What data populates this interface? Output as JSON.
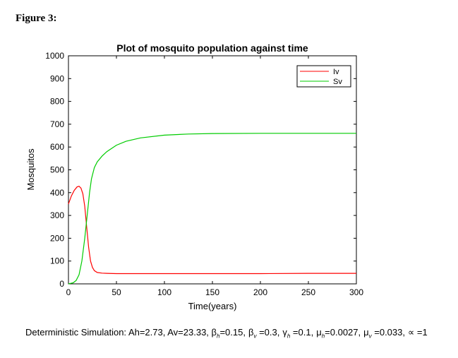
{
  "figure_label": "Figure 3:",
  "chart_data": {
    "type": "line",
    "title": "Plot of mosquito population against time",
    "xlabel": "Time(years)",
    "ylabel": "Mosquitos",
    "xlim": [
      0,
      300
    ],
    "ylim": [
      0,
      1000
    ],
    "xticks": [
      0,
      50,
      100,
      150,
      200,
      250,
      300
    ],
    "yticks": [
      0,
      100,
      200,
      300,
      400,
      500,
      600,
      700,
      800,
      900,
      1000
    ],
    "xtick_labels": [
      "0",
      "50",
      "100",
      "150",
      "200",
      "250",
      "300"
    ],
    "ytick_labels": [
      "0",
      "100",
      "200",
      "300",
      "400",
      "500",
      "600",
      "700",
      "800",
      "900",
      "1000"
    ],
    "grid": false,
    "legend_position": "top-right",
    "series": [
      {
        "name": "Iv",
        "color": "#ff0000",
        "x": [
          0,
          3,
          6,
          9,
          11,
          13,
          15,
          17,
          19,
          21,
          23,
          25,
          27,
          30,
          35,
          40,
          50,
          75,
          100,
          150,
          200,
          250,
          300
        ],
        "y": [
          350,
          385,
          410,
          425,
          428,
          420,
          395,
          340,
          250,
          160,
          100,
          72,
          58,
          50,
          47,
          46,
          45,
          45,
          45,
          45,
          45,
          46,
          46
        ]
      },
      {
        "name": "Sv",
        "color": "#00cc00",
        "x": [
          0,
          5,
          8,
          11,
          14,
          17,
          20,
          22,
          24,
          27,
          30,
          35,
          40,
          50,
          60,
          75,
          100,
          125,
          150,
          200,
          250,
          300
        ],
        "y": [
          0,
          5,
          15,
          40,
          100,
          200,
          320,
          400,
          460,
          510,
          535,
          560,
          580,
          608,
          625,
          640,
          652,
          657,
          659,
          660,
          660,
          660
        ]
      }
    ]
  },
  "caption": {
    "prefix": "Deterministic Simulation: Ah=2.73,  Av=23.33,  ",
    "beta_h_symbol": "β",
    "beta_h_sub": "h",
    "beta_h_value": "=0.15,",
    "beta_v_symbol": "β",
    "beta_v_sub": "v",
    "beta_v_value": " =0.3,",
    "gamma_h_symbol": "γ",
    "gamma_h_sub": "h",
    "gamma_h_value": " =0.1,",
    "mu_h_symbol": "μ",
    "mu_h_sub": "h",
    "mu_h_value": "=0.0027,",
    "mu_v_symbol": "μ",
    "mu_v_sub": "v",
    "mu_v_value": "=0.033,",
    "alpha_symbol": "∝",
    "alpha_value": " =1"
  }
}
